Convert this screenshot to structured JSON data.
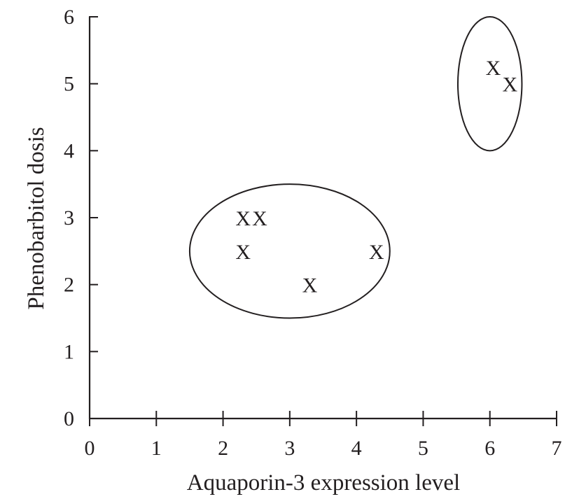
{
  "chart_data": {
    "type": "scatter",
    "xlabel": "Aquaporin-3 expression level",
    "ylabel": "Phenobarbitol dosis",
    "xlim": [
      0,
      7
    ],
    "ylim": [
      0,
      6
    ],
    "xticks": [
      "0",
      "1",
      "2",
      "3",
      "4",
      "5",
      "6",
      "7"
    ],
    "yticks": [
      "0",
      "1",
      "2",
      "3",
      "4",
      "5",
      "6"
    ],
    "marker_symbol": "X",
    "grid": false,
    "points": [
      {
        "x": 2.3,
        "y": 3.0
      },
      {
        "x": 2.55,
        "y": 3.0
      },
      {
        "x": 2.3,
        "y": 2.5
      },
      {
        "x": 3.3,
        "y": 2.0
      },
      {
        "x": 4.3,
        "y": 2.5
      },
      {
        "x": 6.05,
        "y": 5.25
      },
      {
        "x": 6.3,
        "y": 5.0
      }
    ],
    "clusters": [
      {
        "cx": 3.0,
        "cy": 2.5,
        "rx": 1.5,
        "ry": 1.0
      },
      {
        "cx": 6.0,
        "cy": 5.0,
        "rx": 0.48,
        "ry": 1.0
      }
    ],
    "colors": {
      "ink": "#231f20",
      "background": "#ffffff"
    }
  }
}
